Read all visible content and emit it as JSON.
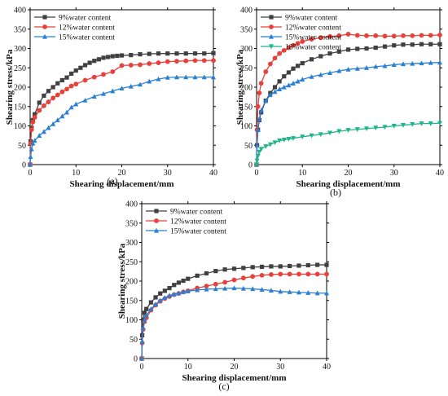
{
  "chart_data": [
    {
      "type": "line",
      "panel_label": "(a)",
      "xlabel": "Shearing displacement/mm",
      "ylabel": "Shearing stress/kPa",
      "xlim": [
        0,
        40
      ],
      "ylim": [
        0,
        400
      ],
      "xticks": [
        "0",
        "10",
        "20",
        "30",
        "40"
      ],
      "yticks": [
        "0",
        "50",
        "100",
        "150",
        "200",
        "250",
        "300",
        "350",
        "400"
      ],
      "legend_position": "top-left",
      "series": [
        {
          "name": "9%water content",
          "color": "#404040",
          "marker": "square",
          "x": [
            0,
            0.1,
            0.3,
            0.6,
            1,
            2,
            3,
            4,
            5,
            6,
            7,
            8,
            9,
            10,
            11,
            12,
            13,
            14,
            15,
            16,
            17,
            18,
            19,
            20,
            22,
            24,
            26,
            28,
            30,
            32,
            34,
            36,
            38,
            40
          ],
          "y": [
            0,
            60,
            95,
            115,
            130,
            160,
            178,
            190,
            200,
            210,
            218,
            225,
            235,
            243,
            250,
            257,
            263,
            268,
            272,
            276,
            278,
            280,
            281,
            282,
            283,
            285,
            286,
            287,
            287,
            287,
            287,
            287,
            287,
            288
          ]
        },
        {
          "name": "12%water content",
          "color": "#e8403a",
          "marker": "circle",
          "x": [
            0,
            0.1,
            0.3,
            0.6,
            1,
            2,
            3,
            4,
            5,
            6,
            7,
            8,
            9,
            10,
            12,
            14,
            16,
            18,
            20,
            22,
            24,
            26,
            28,
            30,
            32,
            34,
            36,
            38,
            40
          ],
          "y": [
            0,
            55,
            90,
            110,
            122,
            140,
            152,
            162,
            172,
            180,
            188,
            195,
            203,
            208,
            218,
            226,
            233,
            240,
            256,
            257,
            258,
            261,
            263,
            266,
            267,
            268,
            269,
            269,
            269
          ]
        },
        {
          "name": "15%water content",
          "color": "#2a7fd4",
          "marker": "triangle",
          "x": [
            0,
            0.1,
            0.3,
            0.6,
            1,
            2,
            3,
            4,
            5,
            6,
            7,
            8,
            9,
            10,
            12,
            14,
            16,
            18,
            20,
            22,
            24,
            26,
            28,
            30,
            32,
            34,
            36,
            38,
            40
          ],
          "y": [
            0,
            20,
            40,
            55,
            62,
            75,
            85,
            95,
            105,
            115,
            125,
            135,
            148,
            156,
            166,
            176,
            183,
            190,
            197,
            202,
            207,
            215,
            221,
            225,
            226,
            226,
            226,
            226,
            226
          ]
        }
      ]
    },
    {
      "type": "line",
      "panel_label": "(b)",
      "xlabel": "Shearing displacement/mm",
      "ylabel": "Shearing stress/kPa",
      "xlim": [
        0,
        40
      ],
      "ylim": [
        0,
        400
      ],
      "xticks": [
        "0",
        "10",
        "20",
        "30",
        "40"
      ],
      "yticks": [
        "0",
        "50",
        "100",
        "150",
        "200",
        "250",
        "300",
        "350",
        "400"
      ],
      "legend_position": "top-left",
      "series": [
        {
          "name": "9%water content",
          "color": "#404040",
          "marker": "square",
          "x": [
            0,
            0.1,
            0.3,
            0.6,
            1,
            2,
            3,
            4,
            5,
            6,
            7,
            8,
            9,
            10,
            12,
            14,
            16,
            18,
            20,
            22,
            24,
            26,
            28,
            30,
            32,
            34,
            36,
            38,
            40
          ],
          "y": [
            0,
            50,
            90,
            115,
            135,
            165,
            185,
            200,
            215,
            228,
            238,
            248,
            255,
            262,
            272,
            280,
            287,
            292,
            297,
            299,
            300,
            302,
            305,
            308,
            310,
            310,
            311,
            311,
            311
          ]
        },
        {
          "name": "12%water content",
          "color": "#e8403a",
          "marker": "circle",
          "x": [
            0,
            0.1,
            0.3,
            0.6,
            1,
            2,
            3,
            4,
            5,
            6,
            7,
            8,
            9,
            10,
            12,
            14,
            16,
            18,
            20,
            22,
            24,
            26,
            28,
            30,
            32,
            34,
            36,
            38,
            40
          ],
          "y": [
            0,
            90,
            150,
            185,
            210,
            240,
            260,
            275,
            287,
            295,
            302,
            308,
            313,
            318,
            324,
            328,
            331,
            333,
            337,
            334,
            333,
            333,
            332,
            332,
            333,
            333,
            334,
            334,
            335
          ]
        },
        {
          "name": "15%water content",
          "color": "#2a7fd4",
          "marker": "triangle",
          "x": [
            0,
            0.1,
            0.3,
            0.6,
            1,
            2,
            3,
            4,
            5,
            6,
            7,
            8,
            9,
            10,
            12,
            14,
            16,
            18,
            20,
            22,
            24,
            26,
            28,
            30,
            32,
            34,
            36,
            38,
            40
          ],
          "y": [
            0,
            50,
            90,
            118,
            140,
            165,
            180,
            188,
            195,
            200,
            205,
            210,
            215,
            220,
            227,
            232,
            237,
            242,
            246,
            248,
            250,
            253,
            255,
            258,
            260,
            261,
            262,
            263,
            264
          ]
        },
        {
          "name": "18%water content",
          "color": "#1fb58a",
          "marker": "triangle-down",
          "x": [
            0,
            0.1,
            0.3,
            0.6,
            1,
            2,
            3,
            4,
            5,
            6,
            7,
            8,
            10,
            12,
            14,
            16,
            18,
            20,
            22,
            24,
            26,
            28,
            30,
            32,
            34,
            36,
            38,
            40
          ],
          "y": [
            0,
            10,
            22,
            33,
            40,
            47,
            52,
            57,
            62,
            64,
            66,
            68,
            72,
            75,
            78,
            82,
            86,
            89,
            91,
            93,
            95,
            97,
            100,
            102,
            104,
            106,
            106,
            107
          ]
        }
      ]
    },
    {
      "type": "line",
      "panel_label": "(c)",
      "xlabel": "Shearing displacement/mm",
      "ylabel": "Shearing stress/kPa",
      "xlim": [
        0,
        40
      ],
      "ylim": [
        0,
        400
      ],
      "xticks": [
        "0",
        "10",
        "20",
        "30",
        "40"
      ],
      "yticks": [
        "0",
        "50",
        "100",
        "150",
        "200",
        "250",
        "300",
        "350",
        "400"
      ],
      "legend_position": "top-left",
      "series": [
        {
          "name": "9%water content",
          "color": "#404040",
          "marker": "square",
          "x": [
            0,
            0.1,
            0.3,
            0.6,
            1,
            2,
            3,
            4,
            5,
            6,
            7,
            8,
            9,
            10,
            12,
            14,
            16,
            18,
            20,
            22,
            24,
            26,
            28,
            30,
            32,
            34,
            36,
            38,
            40
          ],
          "y": [
            0,
            60,
            100,
            118,
            128,
            145,
            158,
            168,
            175,
            182,
            190,
            196,
            201,
            206,
            214,
            220,
            226,
            230,
            232,
            234,
            236,
            237,
            238,
            238,
            239,
            240,
            241,
            242,
            242
          ]
        },
        {
          "name": "12%water content",
          "color": "#e8403a",
          "marker": "circle",
          "x": [
            0,
            0.1,
            0.3,
            0.6,
            1,
            2,
            3,
            4,
            5,
            6,
            7,
            8,
            9,
            10,
            12,
            14,
            16,
            18,
            20,
            22,
            24,
            26,
            28,
            30,
            32,
            34,
            36,
            38,
            40
          ],
          "y": [
            0,
            40,
            75,
            95,
            105,
            125,
            138,
            148,
            155,
            160,
            165,
            168,
            172,
            175,
            182,
            187,
            192,
            197,
            203,
            208,
            212,
            215,
            217,
            218,
            218,
            218,
            218,
            218,
            218
          ]
        },
        {
          "name": "15%water content",
          "color": "#2a7fd4",
          "marker": "triangle",
          "x": [
            0,
            0.1,
            0.3,
            0.6,
            1,
            2,
            3,
            4,
            5,
            6,
            7,
            8,
            9,
            10,
            12,
            14,
            16,
            18,
            20,
            22,
            24,
            26,
            28,
            30,
            32,
            34,
            36,
            38,
            40
          ],
          "y": [
            0,
            45,
            80,
            100,
            112,
            128,
            140,
            150,
            157,
            163,
            166,
            169,
            172,
            174,
            177,
            179,
            180,
            181,
            182,
            181,
            180,
            178,
            176,
            173,
            172,
            171,
            170,
            169,
            169
          ]
        }
      ]
    }
  ]
}
